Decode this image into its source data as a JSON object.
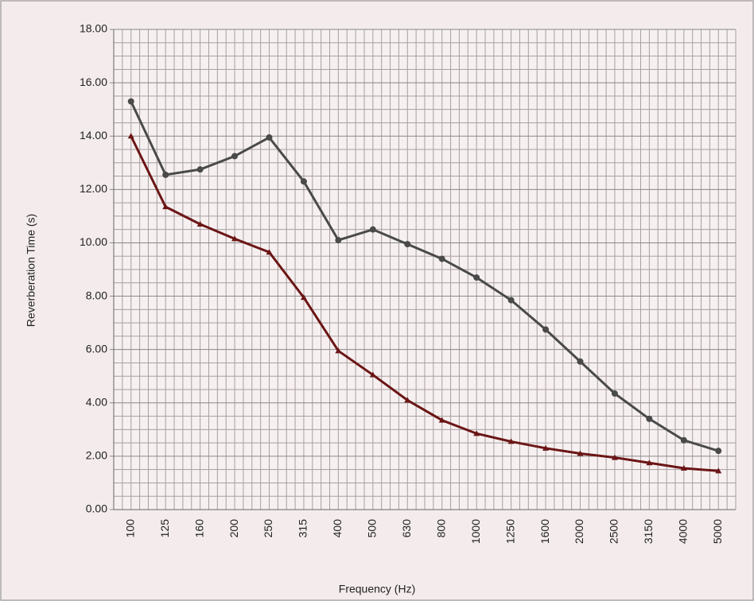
{
  "chart_data": {
    "type": "line",
    "x_label": "Frequency (Hz)",
    "y_label": "Reverberation Time (s)",
    "categories": [
      "100",
      "125",
      "160",
      "200",
      "250",
      "315",
      "400",
      "500",
      "630",
      "800",
      "1000",
      "1250",
      "1600",
      "2000",
      "2500",
      "3150",
      "4000",
      "5000"
    ],
    "series": [
      {
        "color": "#4a4a4a",
        "marker": "circle",
        "values": [
          15.3,
          12.55,
          12.75,
          13.25,
          13.95,
          12.3,
          10.1,
          10.5,
          9.95,
          9.4,
          8.7,
          7.85,
          6.75,
          5.55,
          4.35,
          3.4,
          2.6,
          2.2
        ]
      },
      {
        "color": "#6b1515",
        "marker": "triangle",
        "values": [
          14.0,
          11.35,
          10.7,
          10.15,
          9.65,
          7.95,
          5.95,
          5.05,
          4.1,
          3.35,
          2.85,
          2.55,
          2.3,
          2.1,
          1.95,
          1.75,
          1.55,
          1.45
        ]
      }
    ],
    "ylim": [
      0,
      18
    ],
    "yticks": [
      {
        "value": 0,
        "label": "0.00"
      },
      {
        "value": 2,
        "label": "2.00"
      },
      {
        "value": 4,
        "label": "4.00"
      },
      {
        "value": 6,
        "label": "6.00"
      },
      {
        "value": 8,
        "label": "8.00"
      },
      {
        "value": 10,
        "label": "10.00"
      },
      {
        "value": 12,
        "label": "12.00"
      },
      {
        "value": 14,
        "label": "14.00"
      },
      {
        "value": 16,
        "label": "16.00"
      },
      {
        "value": 18,
        "label": "18.00"
      }
    ],
    "grid": true
  }
}
